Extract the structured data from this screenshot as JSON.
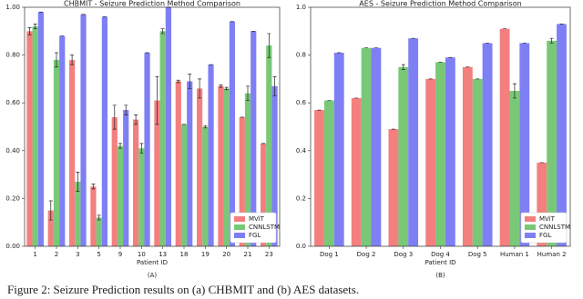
{
  "chart_data": [
    {
      "type": "bar",
      "title": "CHBMIT - Seizure Prediction Method Comparison",
      "x_label": "Patient ID",
      "panel_label": "(A)",
      "categories": [
        "1",
        "2",
        "3",
        "5",
        "9",
        "10",
        "13",
        "18",
        "19",
        "20",
        "21",
        "23"
      ],
      "series": [
        {
          "name": "MViT",
          "color": "#f47f7f",
          "values": [
            0.9,
            0.15,
            0.78,
            0.25,
            0.54,
            0.53,
            0.61,
            0.69,
            0.66,
            0.67,
            0.54,
            0.43
          ],
          "errors": [
            0.015,
            0.04,
            0.02,
            0.01,
            0.05,
            0.02,
            0.1,
            0.005,
            0.04,
            0.005,
            0,
            0
          ]
        },
        {
          "name": "CNNLSTM",
          "color": "#78c878",
          "values": [
            0.92,
            0.78,
            0.27,
            0.12,
            0.42,
            0.41,
            0.9,
            0.51,
            0.5,
            0.66,
            0.64,
            0.84
          ],
          "errors": [
            0.01,
            0.03,
            0.04,
            0.01,
            0.01,
            0.02,
            0.01,
            0,
            0.005,
            0.005,
            0.03,
            0.05
          ]
        },
        {
          "name": "FGL",
          "color": "#7f7ff5",
          "values": [
            0.98,
            0.88,
            0.97,
            0.96,
            0.57,
            0.81,
            1.0,
            0.69,
            0.76,
            0.94,
            0.9,
            0.67
          ],
          "errors": [
            0,
            0,
            0,
            0,
            0.02,
            0,
            0,
            0.03,
            0,
            0,
            0,
            0.04
          ]
        }
      ],
      "ylim": [
        0,
        1.0
      ],
      "yticks": [
        {
          "value": 0,
          "label": "0.00"
        },
        {
          "value": 0.2,
          "label": "0.20"
        },
        {
          "value": 0.4,
          "label": "0.40"
        },
        {
          "value": 0.6,
          "label": "0.60"
        },
        {
          "value": 0.8,
          "label": "0.80"
        },
        {
          "value": 1.0,
          "label": "1.00"
        }
      ],
      "legend": "lower right"
    },
    {
      "type": "bar",
      "title": "AES - Seizure Prediction Method Comparison",
      "x_label": "Patient ID",
      "panel_label": "(B)",
      "categories": [
        "Dog 1",
        "Dog 2",
        "Dog 3",
        "Dog 4",
        "Dog 5",
        "Human 1",
        "Human 2"
      ],
      "series": [
        {
          "name": "MViT",
          "color": "#f47f7f",
          "values": [
            0.57,
            0.62,
            0.49,
            0.7,
            0.75,
            0.91,
            0.35
          ],
          "errors": [
            0,
            0,
            0,
            0,
            0,
            0,
            0
          ]
        },
        {
          "name": "CNNLSTM",
          "color": "#78c878",
          "values": [
            0.61,
            0.83,
            0.75,
            0.77,
            0.7,
            0.65,
            0.86
          ],
          "errors": [
            0,
            0,
            0.01,
            0,
            0,
            0.03,
            0.01
          ]
        },
        {
          "name": "FGL",
          "color": "#7f7ff5",
          "values": [
            0.81,
            0.83,
            0.87,
            0.79,
            0.85,
            0.85,
            0.93
          ],
          "errors": [
            0,
            0,
            0,
            0,
            0,
            0,
            0
          ]
        }
      ],
      "ylim": [
        0,
        1.0
      ],
      "yticks": [
        {
          "value": 0,
          "label": "0.0"
        },
        {
          "value": 0.2,
          "label": "0.2"
        },
        {
          "value": 0.4,
          "label": "0.4"
        },
        {
          "value": 0.6,
          "label": "0.6"
        },
        {
          "value": 0.8,
          "label": "0.8"
        },
        {
          "value": 1.0,
          "label": "1.0"
        }
      ],
      "legend": "lower right"
    }
  ],
  "caption": "Figure 2: Seizure Prediction results on (a) CHBMIT and (b) AES datasets."
}
